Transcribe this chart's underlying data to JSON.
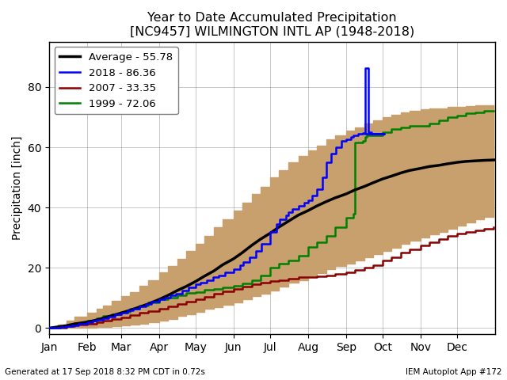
{
  "title": "Year to Date Accumulated Precipitation\n[NC9457] WILMINGTON INTL AP (1948-2018)",
  "ylabel": "Precipitation [inch]",
  "footer_left": "Generated at 17 Sep 2018 8:32 PM CDT in 0.72s",
  "footer_right": "IEM Autoplot App #172",
  "legend_labels": [
    "Average - 55.78",
    "2018 - 86.36",
    "2007 - 33.35",
    "1999 - 72.06"
  ],
  "legend_colors": [
    "black",
    "blue",
    "darkred",
    "green"
  ],
  "fill_color": "#c8a06e",
  "background_color": "white",
  "ylim": [
    -2,
    95
  ],
  "yticks": [
    0,
    20,
    40,
    60,
    80
  ],
  "month_labels": [
    "Jan",
    "Feb",
    "Mar",
    "Apr",
    "May",
    "Jun",
    "Jul",
    "Aug",
    "Sep",
    "Oct",
    "Nov",
    "Dec"
  ],
  "month_positions": [
    1,
    32,
    60,
    91,
    121,
    152,
    182,
    213,
    244,
    274,
    305,
    335
  ],
  "avg_x": [
    1,
    8,
    15,
    22,
    32,
    40,
    45,
    52,
    60,
    67,
    75,
    82,
    91,
    98,
    106,
    113,
    121,
    128,
    136,
    143,
    152,
    159,
    167,
    174,
    182,
    189,
    197,
    205,
    213,
    220,
    228,
    235,
    244,
    251,
    259,
    266,
    274,
    281,
    289,
    296,
    305,
    312,
    320,
    327,
    335,
    342,
    350,
    357,
    365
  ],
  "avg_y": [
    0,
    0.4,
    0.8,
    1.4,
    2.0,
    2.7,
    3.3,
    4.1,
    5.0,
    5.9,
    7.0,
    8.0,
    9.5,
    10.8,
    12.5,
    13.8,
    15.5,
    17.2,
    19.0,
    21.0,
    23.0,
    25.0,
    27.5,
    29.5,
    31.5,
    33.5,
    35.5,
    37.5,
    39.0,
    40.5,
    42.0,
    43.2,
    44.5,
    45.8,
    47.0,
    48.2,
    49.5,
    50.4,
    51.5,
    52.3,
    53.0,
    53.6,
    54.0,
    54.5,
    55.0,
    55.3,
    55.5,
    55.65,
    55.78
  ],
  "upper_x": [
    1,
    8,
    15,
    22,
    32,
    40,
    45,
    52,
    60,
    67,
    75,
    82,
    91,
    98,
    106,
    113,
    121,
    128,
    136,
    143,
    152,
    159,
    167,
    174,
    182,
    189,
    197,
    205,
    213,
    220,
    228,
    235,
    244,
    251,
    259,
    266,
    274,
    281,
    289,
    296,
    305,
    312,
    320,
    327,
    335,
    342,
    350,
    357,
    365
  ],
  "upper_y": [
    0,
    1.2,
    2.5,
    3.8,
    5.0,
    6.5,
    7.5,
    9.0,
    10.5,
    12.0,
    14.0,
    16.0,
    18.5,
    20.5,
    23.0,
    25.5,
    28.0,
    30.5,
    33.5,
    36.0,
    39.0,
    41.5,
    44.5,
    47.0,
    50.0,
    52.5,
    55.0,
    57.0,
    59.0,
    60.5,
    62.5,
    64.0,
    65.5,
    66.5,
    68.0,
    69.0,
    70.0,
    70.8,
    71.5,
    72.0,
    72.5,
    73.0,
    73.0,
    73.3,
    73.5,
    73.7,
    73.8,
    73.9,
    74.0
  ],
  "lower_x": [
    1,
    8,
    15,
    22,
    32,
    40,
    45,
    52,
    60,
    67,
    75,
    82,
    91,
    98,
    106,
    113,
    121,
    128,
    136,
    143,
    152,
    159,
    167,
    174,
    182,
    189,
    197,
    205,
    213,
    220,
    228,
    235,
    244,
    251,
    259,
    266,
    274,
    281,
    289,
    296,
    305,
    312,
    320,
    327,
    335,
    342,
    350,
    357,
    365
  ],
  "lower_y": [
    0,
    0,
    0,
    0.1,
    0.2,
    0.4,
    0.5,
    0.7,
    1.0,
    1.2,
    1.5,
    2.0,
    2.5,
    3.0,
    4.0,
    4.7,
    5.5,
    6.3,
    7.0,
    7.8,
    8.5,
    9.5,
    10.5,
    11.5,
    12.5,
    13.7,
    15.0,
    16.0,
    17.0,
    18.2,
    19.5,
    20.5,
    21.5,
    22.5,
    23.5,
    24.5,
    25.5,
    26.7,
    28.0,
    29.0,
    30.0,
    31.0,
    32.0,
    33.0,
    34.0,
    35.0,
    36.0,
    37.0,
    38.0
  ],
  "y2018_x": [
    1,
    5,
    10,
    15,
    20,
    25,
    32,
    37,
    40,
    45,
    50,
    55,
    60,
    65,
    70,
    75,
    80,
    85,
    91,
    96,
    100,
    105,
    110,
    115,
    121,
    125,
    130,
    135,
    140,
    145,
    152,
    157,
    160,
    165,
    170,
    175,
    182,
    187,
    190,
    195,
    197,
    200,
    205,
    210,
    213,
    216,
    220,
    225,
    228,
    232,
    236,
    240,
    244,
    248,
    250,
    254,
    258,
    260,
    261,
    262,
    265,
    270,
    275,
    260
  ],
  "y2018_y": [
    0,
    0.15,
    0.35,
    0.7,
    1.0,
    1.5,
    2.0,
    2.4,
    2.8,
    3.3,
    3.8,
    4.5,
    5.2,
    5.9,
    6.5,
    7.2,
    8.0,
    8.8,
    9.5,
    10.2,
    10.8,
    11.5,
    12.5,
    13.5,
    14.5,
    15.2,
    16.0,
    16.8,
    17.5,
    18.5,
    19.5,
    21.0,
    22.0,
    23.5,
    25.5,
    28.0,
    32.0,
    34.5,
    36.0,
    37.5,
    38.5,
    39.5,
    40.5,
    41.5,
    42.5,
    44.0,
    46.0,
    50.0,
    55.0,
    58.0,
    60.0,
    62.0,
    62.5,
    63.5,
    64.0,
    64.5,
    64.8,
    86.36,
    86.36,
    65.0,
    64.5,
    64.5,
    64.5,
    64.5
  ],
  "y2007_x": [
    1,
    8,
    15,
    22,
    32,
    40,
    45,
    52,
    60,
    67,
    75,
    82,
    91,
    98,
    106,
    113,
    121,
    128,
    136,
    143,
    152,
    159,
    167,
    174,
    182,
    189,
    197,
    205,
    213,
    220,
    228,
    235,
    244,
    251,
    259,
    266,
    274,
    281,
    289,
    296,
    305,
    312,
    320,
    327,
    335,
    342,
    350,
    357,
    365
  ],
  "y2007_y": [
    0,
    0.2,
    0.6,
    1.1,
    1.5,
    2.0,
    2.5,
    3.0,
    3.5,
    4.2,
    5.0,
    5.7,
    6.5,
    7.2,
    8.0,
    8.8,
    9.5,
    10.4,
    11.5,
    12.2,
    13.0,
    13.8,
    14.5,
    15.0,
    15.5,
    16.0,
    16.5,
    16.8,
    17.0,
    17.3,
    17.5,
    18.0,
    18.5,
    19.2,
    20.0,
    21.0,
    22.5,
    23.5,
    25.0,
    26.0,
    27.5,
    28.5,
    29.5,
    30.5,
    31.5,
    32.0,
    32.5,
    33.0,
    33.35
  ],
  "y1999_x": [
    1,
    8,
    15,
    22,
    32,
    40,
    45,
    52,
    60,
    67,
    75,
    82,
    91,
    98,
    106,
    113,
    121,
    128,
    136,
    143,
    152,
    159,
    167,
    174,
    182,
    189,
    197,
    205,
    213,
    220,
    228,
    235,
    244,
    250,
    251,
    258,
    260,
    261,
    274,
    281,
    289,
    296,
    305,
    312,
    320,
    327,
    335,
    342,
    350,
    357,
    365
  ],
  "y1999_y": [
    0,
    0.4,
    1.0,
    1.7,
    2.5,
    3.3,
    4.0,
    4.7,
    5.5,
    6.4,
    7.5,
    8.4,
    9.5,
    10.2,
    11.0,
    11.6,
    12.0,
    12.6,
    13.0,
    13.5,
    14.0,
    14.8,
    16.0,
    17.5,
    20.0,
    21.5,
    22.5,
    24.0,
    27.0,
    28.5,
    30.5,
    33.5,
    36.5,
    38.0,
    61.5,
    62.0,
    63.5,
    64.0,
    65.0,
    66.0,
    66.5,
    67.0,
    67.0,
    68.0,
    69.0,
    70.0,
    70.5,
    71.2,
    71.5,
    72.0,
    72.06
  ]
}
